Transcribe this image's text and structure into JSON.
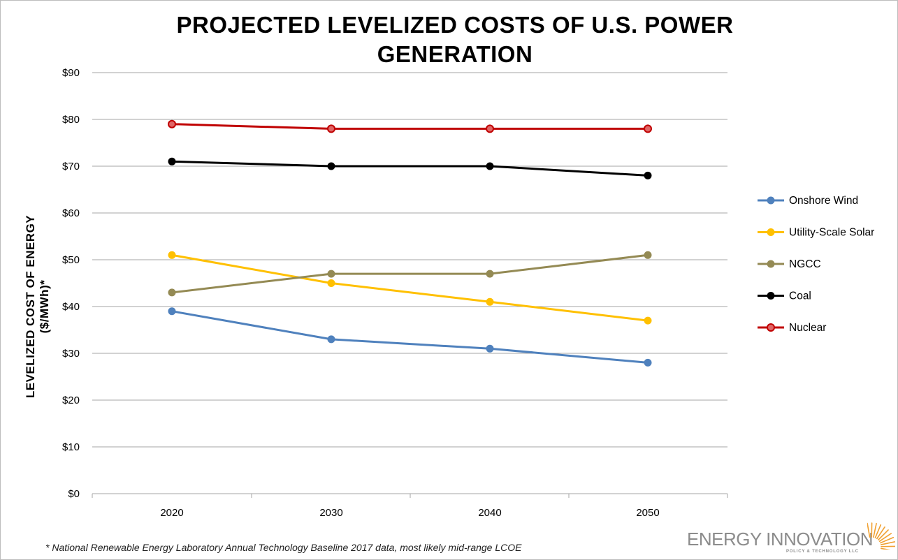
{
  "chart_data": {
    "type": "line",
    "title": "PROJECTED LEVELIZED COSTS OF U.S. POWER GENERATION",
    "ylabel": "LEVELIZED COST OF ENERGY ($/MWh)*",
    "xlabel": "",
    "categories": [
      "2020",
      "2030",
      "2040",
      "2050"
    ],
    "ylim": [
      0,
      90
    ],
    "yticks": [
      0,
      10,
      20,
      30,
      40,
      50,
      60,
      70,
      80,
      90
    ],
    "ytick_labels": [
      "$0",
      "$10",
      "$20",
      "$30",
      "$40",
      "$50",
      "$60",
      "$70",
      "$80",
      "$90"
    ],
    "grid": true,
    "legend_position": "right",
    "series": [
      {
        "name": "Onshore Wind",
        "color": "#4f81bd",
        "values": [
          39,
          33,
          31,
          28
        ]
      },
      {
        "name": "Utility-Scale Solar",
        "color": "#ffc000",
        "values": [
          51,
          45,
          41,
          37
        ]
      },
      {
        "name": "NGCC",
        "color": "#948a54",
        "values": [
          43,
          47,
          47,
          51
        ]
      },
      {
        "name": "Coal",
        "color": "#000000",
        "values": [
          71,
          70,
          70,
          68
        ]
      },
      {
        "name": "Nuclear",
        "color": "#c00000",
        "values": [
          79,
          78,
          78,
          78
        ]
      }
    ]
  },
  "footnote": "* National Renewable Energy Laboratory Annual Technology Baseline 2017 data, most likely mid-range LCOE",
  "logo": {
    "line1_part1": "ENERGY ",
    "line1_part2": "INNOVATION",
    "line2": "POLICY & TECHNOLOGY LLC",
    "accent": "#f0a030"
  }
}
